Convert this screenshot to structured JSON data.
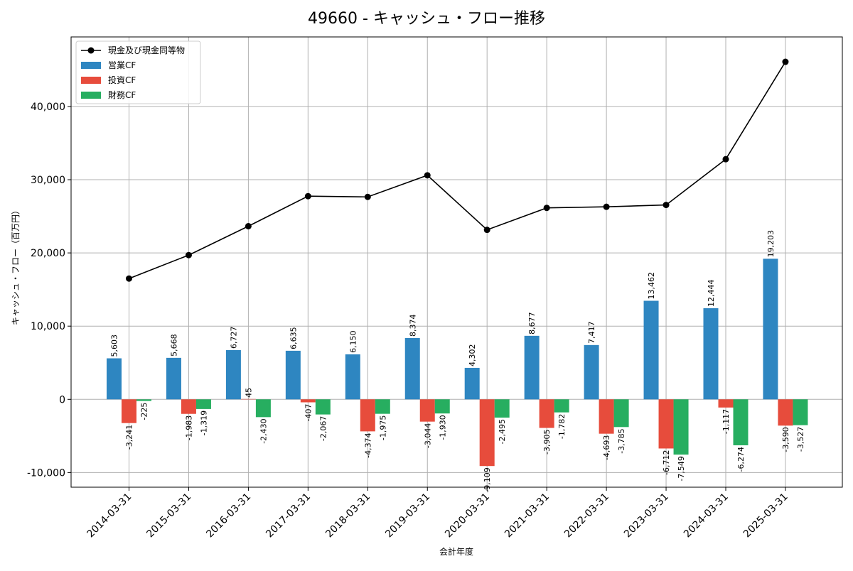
{
  "chart_data": {
    "type": "bar+line",
    "title": "49660 - キャッシュ・フロー推移",
    "xlabel": "会計年度",
    "ylabel": "キャッシュ・フロー（百万円）",
    "ylim": [
      -12000,
      49500
    ],
    "yticks": [
      -10000,
      0,
      10000,
      20000,
      30000,
      40000
    ],
    "ytick_labels": [
      "-10,000",
      "0",
      "10,000",
      "20,000",
      "30,000",
      "40,000"
    ],
    "grid": true,
    "legend_position": "top-left",
    "categories": [
      "2014-03-31",
      "2015-03-31",
      "2016-03-31",
      "2017-03-31",
      "2018-03-31",
      "2019-03-31",
      "2020-03-31",
      "2021-03-31",
      "2022-03-31",
      "2023-03-31",
      "2024-03-31",
      "2025-03-31"
    ],
    "line": {
      "name": "現金及び現金同等物",
      "color": "#000000",
      "values": [
        16500,
        19700,
        23650,
        27750,
        27650,
        30600,
        23150,
        26150,
        26300,
        26550,
        32800,
        46100
      ]
    },
    "series": [
      {
        "name": "営業CF",
        "color": "#2e86c1",
        "values": [
          5603,
          5668,
          6727,
          6635,
          6150,
          8374,
          4302,
          8677,
          7417,
          13462,
          12444,
          19203
        ],
        "labels": [
          "5,603",
          "5,668",
          "6,727",
          "6,635",
          "6,150",
          "8,374",
          "4,302",
          "8,677",
          "7,417",
          "13,462",
          "12,444",
          "19,203"
        ]
      },
      {
        "name": "投資CF",
        "color": "#e74c3c",
        "values": [
          -3241,
          -1983,
          45,
          -407,
          -4374,
          -3044,
          -9109,
          -3905,
          -4693,
          -6712,
          -1117,
          -3590
        ],
        "labels": [
          "-3,241",
          "-1,983",
          "45",
          "-407",
          "-4,374",
          "-3,044",
          "-9,109",
          "-3,905",
          "-4,693",
          "-6,712",
          "-1,117",
          "-3,590"
        ]
      },
      {
        "name": "財務CF",
        "color": "#27ae60",
        "values": [
          -225,
          -1319,
          -2430,
          -2067,
          -1975,
          -1930,
          -2495,
          -1782,
          -3785,
          -7549,
          -6274,
          -3527
        ],
        "labels": [
          "-225",
          "-1,319",
          "-2,430",
          "-2,067",
          "-1,975",
          "-1,930",
          "-2,495",
          "-1,782",
          "-3,785",
          "-7,549",
          "-6,274",
          "-3,527"
        ]
      }
    ]
  }
}
